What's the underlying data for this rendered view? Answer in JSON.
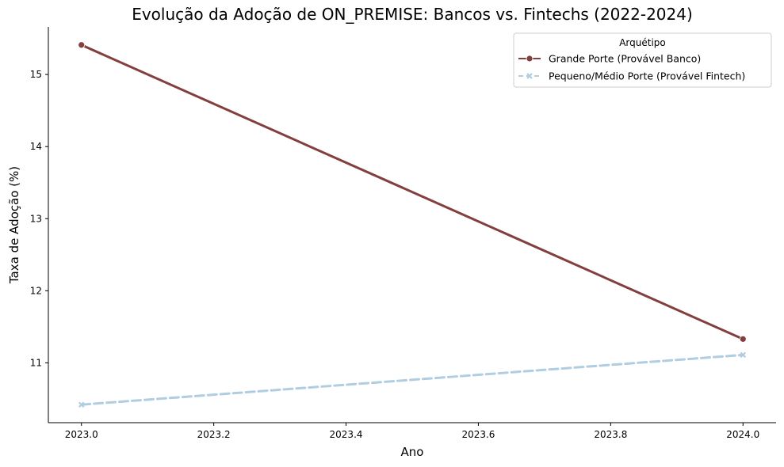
{
  "chart_data": {
    "type": "line",
    "title": "Evolução da Adoção de ON_PREMISE: Bancos vs. Fintechs (2022-2024)",
    "xlabel": "Ano",
    "ylabel": "Taxa de Adoção (%)",
    "xlim": [
      2022.95,
      2024.05
    ],
    "ylim": [
      10.17,
      15.66
    ],
    "x_ticks": [
      2023.0,
      2023.2,
      2023.4,
      2023.6,
      2023.8,
      2024.0
    ],
    "x_tick_labels": [
      "2023.0",
      "2023.2",
      "2023.4",
      "2023.6",
      "2023.8",
      "2024.0"
    ],
    "y_ticks": [
      11,
      12,
      13,
      14,
      15
    ],
    "y_tick_labels": [
      "11",
      "12",
      "13",
      "14",
      "15"
    ],
    "grid": false,
    "legend": {
      "title": "Arquétipo",
      "placement": "top-right"
    },
    "series": [
      {
        "name": "Grande Porte (Provável Banco)",
        "x": [
          2023,
          2024
        ],
        "values": [
          15.41,
          11.33
        ],
        "color": "#823f3d",
        "marker": "circle",
        "dash": "solid"
      },
      {
        "name": "Pequeno/Médio Porte (Provável Fintech)",
        "x": [
          2023,
          2024
        ],
        "values": [
          10.42,
          11.11
        ],
        "color": "#b1cde0",
        "marker": "x",
        "dash": "dashed"
      }
    ]
  }
}
